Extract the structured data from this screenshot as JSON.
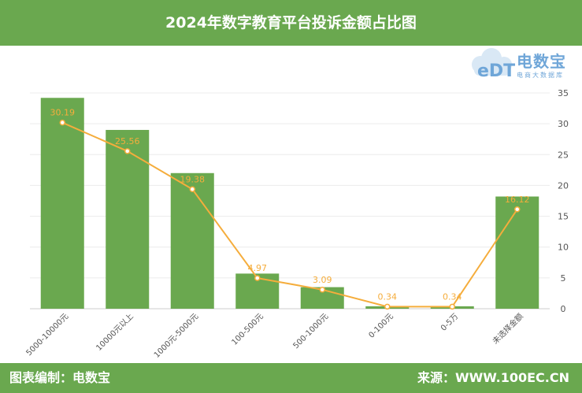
{
  "header": {
    "title": "2024年数字教育平台投诉金额占比图"
  },
  "logo": {
    "name": "电数宝",
    "subtitle": "电商大数据库",
    "mark_text": "eDT"
  },
  "footer": {
    "left": "图表编制：电数宝",
    "right": "来源：WWW.100EC.CN"
  },
  "colors": {
    "header_bg": "#6aa84f",
    "bar": "#6aa84f",
    "line": "#f5ad3c",
    "label": "#f5ad3c",
    "axis_text": "#555555",
    "logo": "#6fa6d8"
  },
  "chart_data": {
    "type": "bar",
    "categories": [
      "5000-10000元",
      "10000元以上",
      "1000元-5000元",
      "100-500元",
      "500-1000元",
      "0-100元",
      "0-5万",
      "未选择金额"
    ],
    "series": [
      {
        "type": "bar",
        "values": [
          34.2,
          29.0,
          22.0,
          5.7,
          3.5,
          0.4,
          0.4,
          18.2
        ]
      },
      {
        "type": "line",
        "values": [
          30.19,
          25.56,
          19.38,
          4.97,
          3.09,
          0.34,
          0.34,
          16.12
        ]
      }
    ],
    "data_labels": [
      "30.19",
      "25.56",
      "19.38",
      "4.97",
      "3.09",
      "0.34",
      "0.34",
      "16.12"
    ],
    "y_axis": {
      "position": "right",
      "unit": "%",
      "min": 0,
      "max": 35,
      "ticks": [
        "0",
        "5",
        "10",
        "15",
        "20",
        "25",
        "30",
        "35"
      ]
    },
    "grid": true
  }
}
